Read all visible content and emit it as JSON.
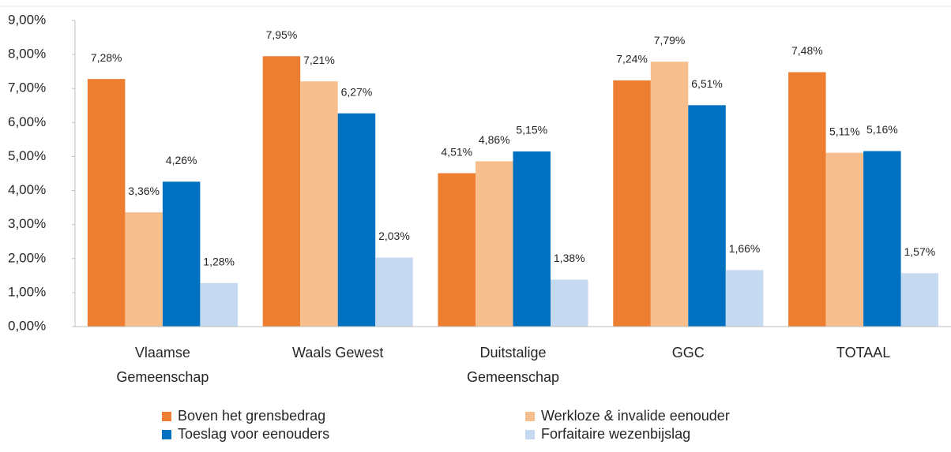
{
  "chart_data": {
    "type": "bar",
    "categories": [
      [
        "Vlaamse",
        "Gemeenschap"
      ],
      [
        "Waals Gewest"
      ],
      [
        "Duitstalige",
        "Gemeenschap"
      ],
      [
        "GGC"
      ],
      [
        "TOTAAL"
      ]
    ],
    "series": [
      {
        "name": "Boven het grensbedrag",
        "color": "#ED7D31",
        "values": [
          7.28,
          7.95,
          4.51,
          7.24,
          7.48
        ],
        "value_labels": [
          "7,28%",
          "7,95%",
          "4,51%",
          "7,24%",
          "7,48%"
        ]
      },
      {
        "name": "Werkloze & invalide eenouder",
        "color": "#F8BF8E",
        "values": [
          3.36,
          7.21,
          4.86,
          7.79,
          5.11
        ],
        "value_labels": [
          "3,36%",
          "7,21%",
          "4,86%",
          "7,79%",
          "5,11%"
        ]
      },
      {
        "name": "Toeslag voor eenouders",
        "color": "#0070C0",
        "values": [
          4.26,
          6.27,
          5.15,
          6.51,
          5.16
        ],
        "value_labels": [
          "4,26%",
          "6,27%",
          "5,15%",
          "6,51%",
          "5,16%"
        ]
      },
      {
        "name": "Forfaitaire wezenbijslag",
        "color": "#C5D9F1",
        "values": [
          1.28,
          2.03,
          1.38,
          1.66,
          1.57
        ],
        "value_labels": [
          "1,28%",
          "2,03%",
          "1,38%",
          "1,66%",
          "1,57%"
        ]
      }
    ],
    "ylim": [
      0,
      9
    ],
    "yticks": [
      {
        "value": 0,
        "label": "0,00%"
      },
      {
        "value": 1,
        "label": "1,00%"
      },
      {
        "value": 2,
        "label": "2,00%"
      },
      {
        "value": 3,
        "label": "3,00%"
      },
      {
        "value": 4,
        "label": "4,00%"
      },
      {
        "value": 5,
        "label": "5,00%"
      },
      {
        "value": 6,
        "label": "6,00%"
      },
      {
        "value": 7,
        "label": "7,00%"
      },
      {
        "value": 8,
        "label": "8,00%"
      },
      {
        "value": 9,
        "label": "9,00%"
      }
    ],
    "grid": false,
    "legend": "bottom"
  }
}
